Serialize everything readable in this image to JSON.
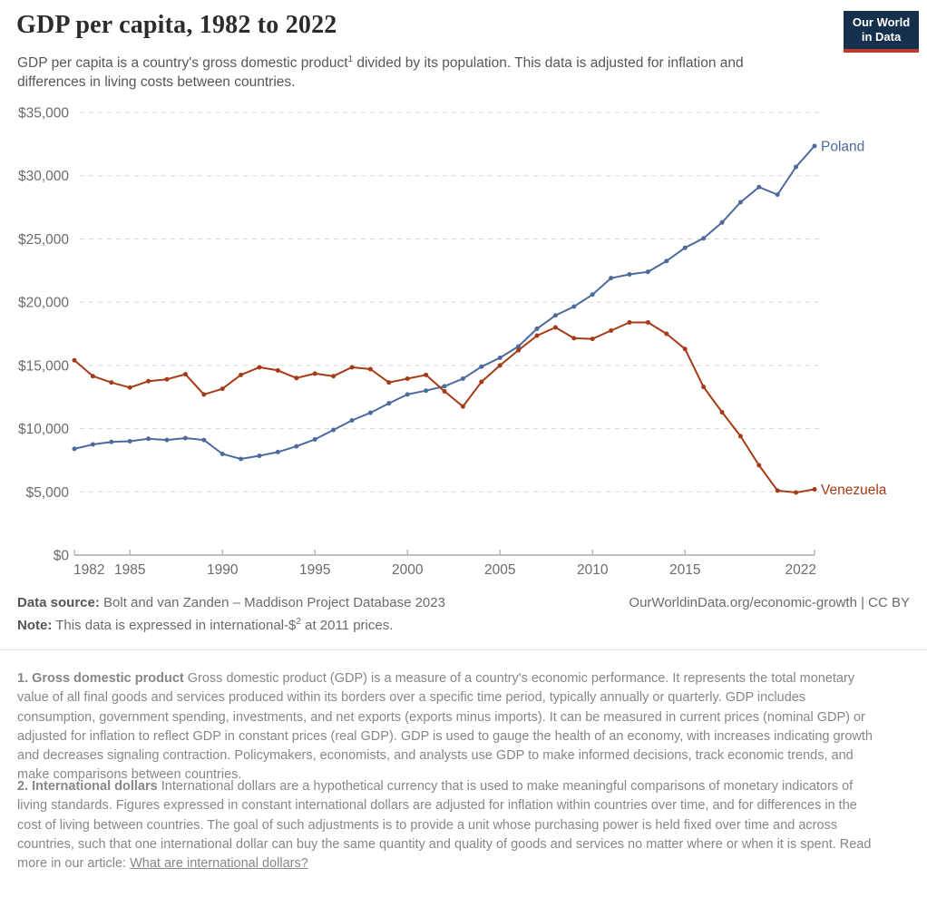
{
  "header": {
    "title": "GDP per capita, 1982 to 2022",
    "subtitle_part1": "GDP per capita is a country's gross domestic product",
    "subtitle_sup": "1",
    "subtitle_part2": " divided by its population. This data is adjusted for inflation and differences in living costs between countries.",
    "logo": {
      "line1": "Our World",
      "line2": "in Data",
      "bg_color": "#15304d",
      "accent_color": "#c0392b"
    }
  },
  "chart_data": {
    "type": "line",
    "x": [
      1982,
      1983,
      1984,
      1985,
      1986,
      1987,
      1988,
      1989,
      1990,
      1991,
      1992,
      1993,
      1994,
      1995,
      1996,
      1997,
      1998,
      1999,
      2000,
      2001,
      2002,
      2003,
      2004,
      2005,
      2006,
      2007,
      2008,
      2009,
      2010,
      2011,
      2012,
      2013,
      2014,
      2015,
      2016,
      2017,
      2018,
      2019,
      2020,
      2021,
      2022
    ],
    "series": [
      {
        "name": "Poland",
        "color": "#4C6A9C",
        "values": [
          8400,
          8750,
          8950,
          9000,
          9200,
          9100,
          9250,
          9100,
          8000,
          7600,
          7850,
          8150,
          8600,
          9150,
          9900,
          10650,
          11250,
          12000,
          12700,
          13000,
          13350,
          13950,
          14900,
          15600,
          16500,
          17900,
          18950,
          19650,
          20600,
          21900,
          22200,
          22400,
          23250,
          24300,
          25050,
          26300,
          27900,
          29100,
          28500,
          30700,
          32350
        ]
      },
      {
        "name": "Venezuela",
        "color": "#A63A17",
        "values": [
          15400,
          14150,
          13650,
          13250,
          13750,
          13900,
          14300,
          12700,
          13150,
          14250,
          14850,
          14600,
          14000,
          14350,
          14150,
          14850,
          14700,
          13650,
          13950,
          14250,
          12950,
          11750,
          13700,
          15000,
          16200,
          17350,
          18000,
          17150,
          17100,
          17750,
          18400,
          18400,
          17500,
          16300,
          13300,
          11300,
          9400,
          7100,
          5100,
          4950,
          5200
        ]
      }
    ],
    "ylim": [
      0,
      35000
    ],
    "ytick_step": 5000,
    "ytick_labels": [
      "$0",
      "$5,000",
      "$10,000",
      "$15,000",
      "$20,000",
      "$25,000",
      "$30,000",
      "$35,000"
    ],
    "xticks": [
      1982,
      1985,
      1990,
      1995,
      2000,
      2005,
      2010,
      2015,
      2022
    ],
    "grid": true,
    "legend_position": "end-of-line"
  },
  "footer": {
    "source_label": "Data source:",
    "source_text": " Bolt and van Zanden – Maddison Project Database 2023",
    "citation": "OurWorldinData.org/economic-growth | CC BY",
    "note_label": "Note:",
    "note_part1": " This data is expressed in international-$",
    "note_sup": "2",
    "note_part2": " at 2011 prices."
  },
  "footnotes": {
    "fn1_lead": "1. Gross domestic product",
    "fn1_text": " Gross domestic product (GDP) is a measure of a country's economic performance. It represents the total monetary value of all final goods and services produced within its borders over a specific time period, typically annually or quarterly. GDP includes consumption, government spending, investments, and net exports (exports minus imports). It can be measured in current prices (nominal GDP) or adjusted for inflation to reflect GDP in constant prices (real GDP). GDP is used to gauge the health of an economy, with increases indicating growth and decreases signaling contraction. Policymakers, economists, and analysts use GDP to make informed decisions, track economic trends, and make comparisons between countries.",
    "fn2_lead": "2. International dollars",
    "fn2_text": " International dollars are a hypothetical currency that is used to make meaningful comparisons of monetary indicators of living standards. Figures expressed in constant international dollars are adjusted for inflation within countries over time, and for differences in the cost of living between countries. The goal of such adjustments is to provide a unit whose purchasing power is held fixed over time and across countries, such that one international dollar can buy the same quantity and quality of goods and services no matter where or when it is spent. Read more in our article: ",
    "fn2_link": "What are international dollars?"
  }
}
